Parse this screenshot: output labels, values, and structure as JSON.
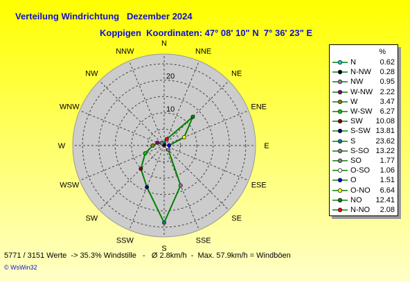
{
  "title": "Verteilung Windrichtung   Dezember 2024",
  "subtitle": "Koppigen  Koordinaten: 47° 08' 10\" N  7° 36' 23\" E",
  "footer": "5771 / 3151 Werte  -> 35.3% Windstille   -   Ø 2.8km/h  -  Max. 57.9km/h = Windböen",
  "brand": "© WsWin32",
  "colors": {
    "disc": "#cccccc",
    "grid": "#404040",
    "rose_line": "#008000"
  },
  "chart_data": {
    "type": "radar",
    "value_unit": "%",
    "ring_labels": [
      "10",
      "20"
    ],
    "rmax": 28,
    "direction_labels": [
      "N",
      "NNE",
      "NE",
      "ENE",
      "E",
      "ESE",
      "SE",
      "SSE",
      "S",
      "SSW",
      "SW",
      "WSW",
      "W",
      "WNW",
      "NW",
      "NNW"
    ],
    "series": [
      {
        "points": [
          {
            "dir": "N",
            "legend": "N",
            "value": 0.62,
            "color": "#00cccc"
          },
          {
            "dir": "NNW",
            "legend": "N-NW",
            "value": 0.28,
            "color": "#000000"
          },
          {
            "dir": "NW",
            "legend": "NW",
            "value": 0.95,
            "color": "#808080"
          },
          {
            "dir": "WNW",
            "legend": "W-NW",
            "value": 2.22,
            "color": "#800080"
          },
          {
            "dir": "W",
            "legend": "W",
            "value": 3.47,
            "color": "#808000"
          },
          {
            "dir": "WSW",
            "legend": "W-SW",
            "value": 6.27,
            "color": "#00cc00"
          },
          {
            "dir": "SW",
            "legend": "SW",
            "value": 10.08,
            "color": "#800000"
          },
          {
            "dir": "SSW",
            "legend": "S-SW",
            "value": 13.81,
            "color": "#000080"
          },
          {
            "dir": "S",
            "legend": "S",
            "value": 23.62,
            "color": "#008080"
          },
          {
            "dir": "SSE",
            "legend": "S-SO",
            "value": 13.22,
            "color": "#808080"
          },
          {
            "dir": "SE",
            "legend": "SO",
            "value": 1.77,
            "color": "#808080"
          },
          {
            "dir": "ESE",
            "legend": "O-SO",
            "value": 1.06,
            "color": "#ffffff"
          },
          {
            "dir": "E",
            "legend": "O",
            "value": 1.51,
            "color": "#0000ff"
          },
          {
            "dir": "ENE",
            "legend": "O-NO",
            "value": 6.64,
            "color": "#ffff00"
          },
          {
            "dir": "NE",
            "legend": "NO",
            "value": 12.41,
            "color": "#008000"
          },
          {
            "dir": "NNE",
            "legend": "N-NO",
            "value": 2.08,
            "color": "#ff0000"
          }
        ]
      }
    ]
  }
}
